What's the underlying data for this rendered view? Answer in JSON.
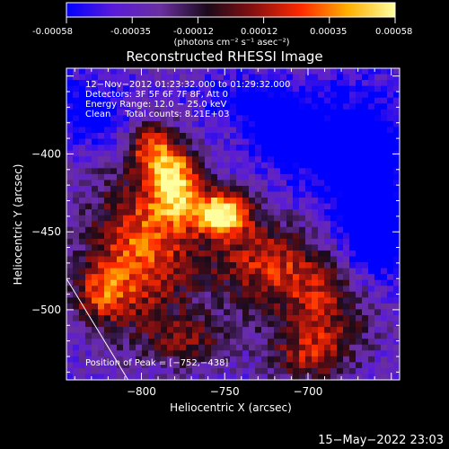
{
  "colorbar": {
    "ticks": [
      "-0.00058",
      "-0.00035",
      "-0.00012",
      "0.00012",
      "0.00035",
      "0.00058"
    ],
    "unit": "(photons cm⁻² s⁻¹ asec⁻²)",
    "colors": [
      "#0000ff",
      "#5a1bd9",
      "#6a2fa0",
      "#1a0a1a",
      "#8a1010",
      "#ff2a00",
      "#ffb000",
      "#ffffa0"
    ]
  },
  "chart_data": {
    "type": "heatmap",
    "title": "Reconstructed RHESSI Image",
    "xlabel": "Heliocentric X (arcsec)",
    "ylabel": "Heliocentric Y (arcsec)",
    "xlim": [
      -845,
      -645
    ],
    "ylim": [
      -545,
      -345
    ],
    "xticks": [
      {
        "value": -800,
        "label": "−800"
      },
      {
        "value": -750,
        "label": "−750"
      },
      {
        "value": -700,
        "label": "−700"
      }
    ],
    "yticks": [
      {
        "value": -400,
        "label": "−400"
      },
      {
        "value": -450,
        "label": "−450"
      },
      {
        "value": -500,
        "label": "−500"
      }
    ],
    "annotations": [
      "12−Nov−2012 01:23:32.000 to 01:29:32.000",
      "Detectors: 3F 5F 6F 7F 8F, Att 0",
      "Energy Range: 12.0 − 25.0 keV",
      "Clean     Total counts: 8.21E+03"
    ],
    "peak_label": "Position of Peak = [−752,−438]",
    "peak": [
      -752,
      -438
    ],
    "limb_line": [
      [
        -845,
        -480
      ],
      [
        -808,
        -545
      ]
    ],
    "sources": [
      {
        "x": -752,
        "y": -438,
        "sx": 12,
        "sy": 10,
        "amp": 1.0
      },
      {
        "x": -780,
        "y": -418,
        "sx": 10,
        "sy": 16,
        "amp": 0.85
      },
      {
        "x": -795,
        "y": -395,
        "sx": 9,
        "sy": 10,
        "amp": 0.55
      },
      {
        "x": -800,
        "y": -460,
        "sx": 22,
        "sy": 35,
        "amp": 0.7
      },
      {
        "x": -725,
        "y": -470,
        "sx": 25,
        "sy": 20,
        "amp": 0.55
      },
      {
        "x": -690,
        "y": -500,
        "sx": 20,
        "sy": 22,
        "amp": 0.45
      },
      {
        "x": -700,
        "y": -530,
        "sx": 16,
        "sy": 12,
        "amp": 0.4
      },
      {
        "x": -825,
        "y": -490,
        "sx": 12,
        "sy": 14,
        "amp": 0.45
      },
      {
        "x": -770,
        "y": -520,
        "sx": 18,
        "sy": 12,
        "amp": 0.35
      },
      {
        "x": -715,
        "y": -385,
        "sx": 15,
        "sy": 15,
        "amp": -0.45
      },
      {
        "x": -670,
        "y": -400,
        "sx": 25,
        "sy": 30,
        "amp": -0.45
      },
      {
        "x": -830,
        "y": -375,
        "sx": 15,
        "sy": 15,
        "amp": -0.4
      },
      {
        "x": -660,
        "y": -455,
        "sx": 15,
        "sy": 20,
        "amp": -0.5
      },
      {
        "x": -740,
        "y": -365,
        "sx": 20,
        "sy": 10,
        "amp": -0.3
      }
    ]
  },
  "footer": {
    "timestamp": "15−May−2022 23:03"
  }
}
